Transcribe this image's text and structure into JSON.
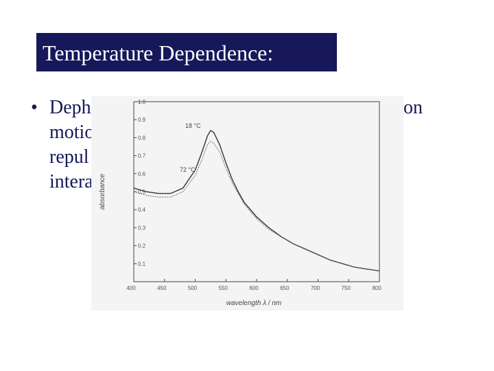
{
  "slide": {
    "title": "Temperature Dependence:",
    "bullet": "•",
    "fragments": [
      "Deph",
      "on",
      "motio",
      "repul",
      "intera"
    ]
  },
  "chart_data": {
    "type": "line",
    "ylabel": "absorbance",
    "xlabel": "wavelength λ / nm",
    "annotations": [
      "18 °C",
      "72 °C"
    ],
    "x": [
      400,
      420,
      440,
      460,
      480,
      500,
      510,
      520,
      525,
      530,
      540,
      550,
      560,
      570,
      580,
      600,
      620,
      640,
      660,
      680,
      700,
      720,
      740,
      760,
      780,
      800
    ],
    "series": [
      {
        "name": "18 °C",
        "color": "#333333",
        "values": [
          0.52,
          0.5,
          0.49,
          0.49,
          0.52,
          0.62,
          0.71,
          0.81,
          0.84,
          0.83,
          0.76,
          0.66,
          0.57,
          0.5,
          0.44,
          0.36,
          0.3,
          0.25,
          0.21,
          0.18,
          0.15,
          0.12,
          0.1,
          0.08,
          0.07,
          0.06
        ]
      },
      {
        "name": "72 °C",
        "color": "#666666",
        "values": [
          0.5,
          0.48,
          0.47,
          0.47,
          0.5,
          0.59,
          0.67,
          0.76,
          0.78,
          0.77,
          0.72,
          0.63,
          0.55,
          0.49,
          0.43,
          0.35,
          0.29,
          0.25,
          0.21,
          0.18,
          0.15,
          0.12,
          0.1,
          0.08,
          0.07,
          0.06
        ]
      }
    ],
    "xlim": [
      400,
      800
    ],
    "ylim": [
      0,
      1
    ],
    "xticks": [
      400,
      450,
      500,
      550,
      600,
      650,
      700,
      750,
      800
    ],
    "yticks": [
      0.1,
      0.2,
      0.3,
      0.4,
      0.5,
      0.6,
      0.7,
      0.8,
      0.9,
      {
        "value": 1,
        "label": "1.0"
      }
    ],
    "grid": false
  }
}
